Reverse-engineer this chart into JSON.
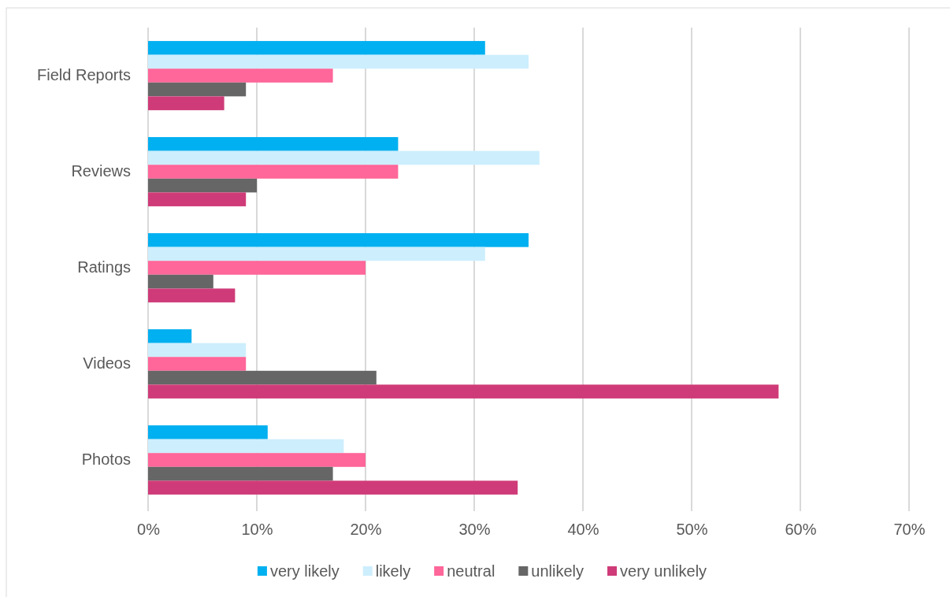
{
  "chart_data": {
    "type": "bar",
    "orientation": "horizontal",
    "categories": [
      "Field Reports",
      "Reviews",
      "Ratings",
      "Videos",
      "Photos"
    ],
    "series": [
      {
        "name": "very likely",
        "color": "#00b0f0",
        "values": [
          31,
          23,
          35,
          4,
          11
        ]
      },
      {
        "name": "likely",
        "color": "#cdeefd",
        "values": [
          35,
          36,
          31,
          9,
          18
        ]
      },
      {
        "name": "neutral",
        "color": "#ff6699",
        "values": [
          17,
          23,
          20,
          9,
          20
        ]
      },
      {
        "name": "unlikely",
        "color": "#666666",
        "values": [
          9,
          10,
          6,
          21,
          17
        ]
      },
      {
        "name": "very unlikely",
        "color": "#cf3b78",
        "values": [
          7,
          9,
          8,
          58,
          34
        ]
      }
    ],
    "xlim": [
      0,
      70
    ],
    "xticks": [
      {
        "value": 0,
        "label": "0%"
      },
      {
        "value": 10,
        "label": "10%"
      },
      {
        "value": 20,
        "label": "20%"
      },
      {
        "value": 30,
        "label": "30%"
      },
      {
        "value": 40,
        "label": "40%"
      },
      {
        "value": 50,
        "label": "50%"
      },
      {
        "value": 60,
        "label": "60%"
      },
      {
        "value": 70,
        "label": "70%"
      }
    ],
    "grid": "x",
    "legend": "bottom"
  }
}
